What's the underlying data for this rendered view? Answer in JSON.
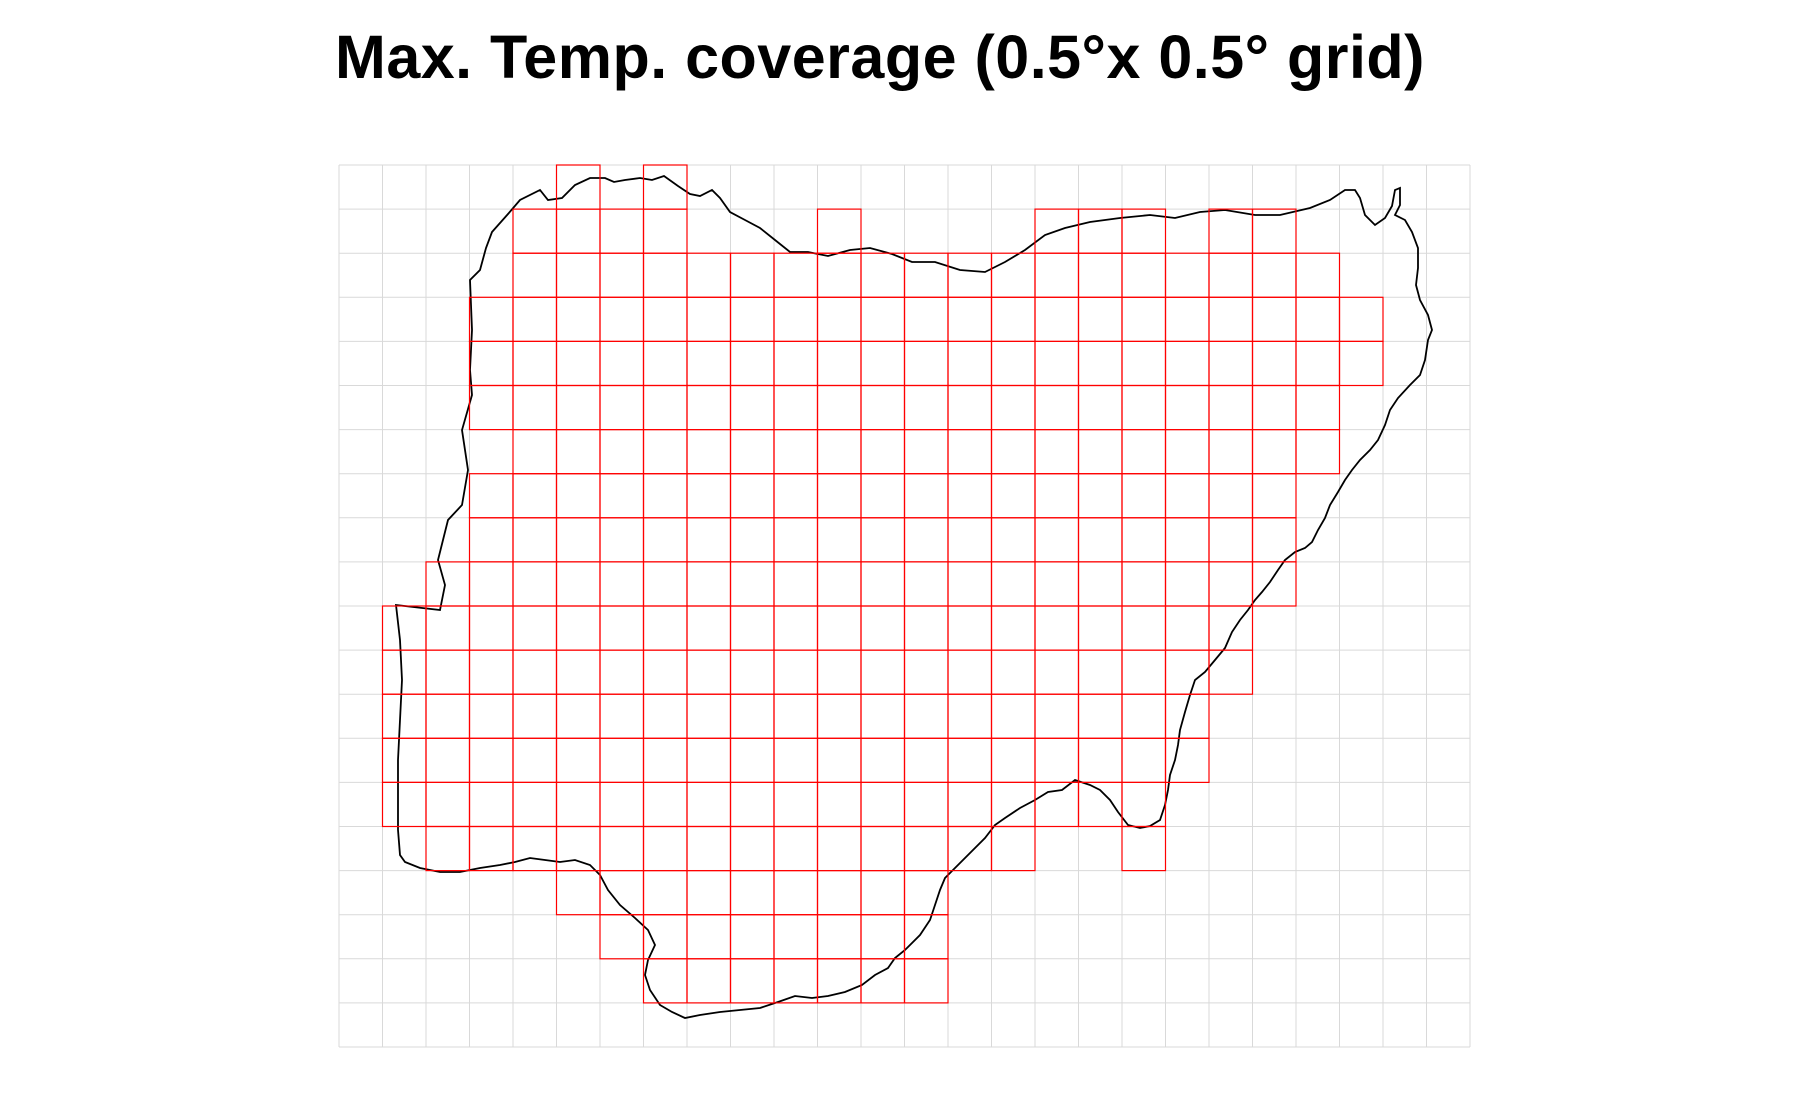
{
  "title": "Max. Temp. coverage (0.5°x 0.5° grid)",
  "colors": {
    "background": "#ffffff",
    "grid_line": "#d9d9d9",
    "covered_cell": "#ff0000",
    "boundary": "#000000"
  },
  "grid": {
    "cell_size_degrees": 0.5,
    "columns": 26,
    "rows": 20,
    "covered_cells": [
      [
        5,
        0
      ],
      [
        7,
        0
      ],
      [
        4,
        1
      ],
      [
        5,
        1
      ],
      [
        6,
        1
      ],
      [
        7,
        1
      ],
      [
        11,
        1
      ],
      [
        16,
        1
      ],
      [
        17,
        1
      ],
      [
        18,
        1
      ],
      [
        20,
        1
      ],
      [
        21,
        1
      ],
      [
        4,
        2
      ],
      [
        5,
        2
      ],
      [
        6,
        2
      ],
      [
        7,
        2
      ],
      [
        8,
        2
      ],
      [
        9,
        2
      ],
      [
        10,
        2
      ],
      [
        11,
        2
      ],
      [
        12,
        2
      ],
      [
        13,
        2
      ],
      [
        14,
        2
      ],
      [
        15,
        2
      ],
      [
        16,
        2
      ],
      [
        17,
        2
      ],
      [
        18,
        2
      ],
      [
        19,
        2
      ],
      [
        20,
        2
      ],
      [
        21,
        2
      ],
      [
        22,
        2
      ],
      [
        3,
        3
      ],
      [
        4,
        3
      ],
      [
        5,
        3
      ],
      [
        6,
        3
      ],
      [
        7,
        3
      ],
      [
        8,
        3
      ],
      [
        9,
        3
      ],
      [
        10,
        3
      ],
      [
        11,
        3
      ],
      [
        12,
        3
      ],
      [
        13,
        3
      ],
      [
        14,
        3
      ],
      [
        15,
        3
      ],
      [
        16,
        3
      ],
      [
        17,
        3
      ],
      [
        18,
        3
      ],
      [
        19,
        3
      ],
      [
        20,
        3
      ],
      [
        21,
        3
      ],
      [
        22,
        3
      ],
      [
        23,
        3
      ],
      [
        3,
        4
      ],
      [
        4,
        4
      ],
      [
        5,
        4
      ],
      [
        6,
        4
      ],
      [
        7,
        4
      ],
      [
        8,
        4
      ],
      [
        9,
        4
      ],
      [
        10,
        4
      ],
      [
        11,
        4
      ],
      [
        12,
        4
      ],
      [
        13,
        4
      ],
      [
        14,
        4
      ],
      [
        15,
        4
      ],
      [
        16,
        4
      ],
      [
        17,
        4
      ],
      [
        18,
        4
      ],
      [
        19,
        4
      ],
      [
        20,
        4
      ],
      [
        21,
        4
      ],
      [
        22,
        4
      ],
      [
        23,
        4
      ],
      [
        3,
        5
      ],
      [
        4,
        5
      ],
      [
        5,
        5
      ],
      [
        6,
        5
      ],
      [
        7,
        5
      ],
      [
        8,
        5
      ],
      [
        9,
        5
      ],
      [
        10,
        5
      ],
      [
        11,
        5
      ],
      [
        12,
        5
      ],
      [
        13,
        5
      ],
      [
        14,
        5
      ],
      [
        15,
        5
      ],
      [
        16,
        5
      ],
      [
        17,
        5
      ],
      [
        18,
        5
      ],
      [
        19,
        5
      ],
      [
        20,
        5
      ],
      [
        21,
        5
      ],
      [
        22,
        5
      ],
      [
        4,
        6
      ],
      [
        5,
        6
      ],
      [
        6,
        6
      ],
      [
        7,
        6
      ],
      [
        8,
        6
      ],
      [
        9,
        6
      ],
      [
        10,
        6
      ],
      [
        11,
        6
      ],
      [
        12,
        6
      ],
      [
        13,
        6
      ],
      [
        14,
        6
      ],
      [
        15,
        6
      ],
      [
        16,
        6
      ],
      [
        17,
        6
      ],
      [
        18,
        6
      ],
      [
        19,
        6
      ],
      [
        20,
        6
      ],
      [
        21,
        6
      ],
      [
        22,
        6
      ],
      [
        3,
        7
      ],
      [
        4,
        7
      ],
      [
        5,
        7
      ],
      [
        6,
        7
      ],
      [
        7,
        7
      ],
      [
        8,
        7
      ],
      [
        9,
        7
      ],
      [
        10,
        7
      ],
      [
        11,
        7
      ],
      [
        12,
        7
      ],
      [
        13,
        7
      ],
      [
        14,
        7
      ],
      [
        15,
        7
      ],
      [
        16,
        7
      ],
      [
        17,
        7
      ],
      [
        18,
        7
      ],
      [
        19,
        7
      ],
      [
        20,
        7
      ],
      [
        21,
        7
      ],
      [
        3,
        8
      ],
      [
        4,
        8
      ],
      [
        5,
        8
      ],
      [
        6,
        8
      ],
      [
        7,
        8
      ],
      [
        8,
        8
      ],
      [
        9,
        8
      ],
      [
        10,
        8
      ],
      [
        11,
        8
      ],
      [
        12,
        8
      ],
      [
        13,
        8
      ],
      [
        14,
        8
      ],
      [
        15,
        8
      ],
      [
        16,
        8
      ],
      [
        17,
        8
      ],
      [
        18,
        8
      ],
      [
        19,
        8
      ],
      [
        20,
        8
      ],
      [
        21,
        8
      ],
      [
        2,
        9
      ],
      [
        3,
        9
      ],
      [
        4,
        9
      ],
      [
        5,
        9
      ],
      [
        6,
        9
      ],
      [
        7,
        9
      ],
      [
        8,
        9
      ],
      [
        9,
        9
      ],
      [
        10,
        9
      ],
      [
        11,
        9
      ],
      [
        12,
        9
      ],
      [
        13,
        9
      ],
      [
        14,
        9
      ],
      [
        15,
        9
      ],
      [
        16,
        9
      ],
      [
        17,
        9
      ],
      [
        18,
        9
      ],
      [
        19,
        9
      ],
      [
        20,
        9
      ],
      [
        21,
        9
      ],
      [
        1,
        10
      ],
      [
        2,
        10
      ],
      [
        3,
        10
      ],
      [
        4,
        10
      ],
      [
        5,
        10
      ],
      [
        6,
        10
      ],
      [
        7,
        10
      ],
      [
        8,
        10
      ],
      [
        9,
        10
      ],
      [
        10,
        10
      ],
      [
        11,
        10
      ],
      [
        12,
        10
      ],
      [
        13,
        10
      ],
      [
        14,
        10
      ],
      [
        15,
        10
      ],
      [
        16,
        10
      ],
      [
        17,
        10
      ],
      [
        18,
        10
      ],
      [
        19,
        10
      ],
      [
        20,
        10
      ],
      [
        1,
        11
      ],
      [
        2,
        11
      ],
      [
        3,
        11
      ],
      [
        4,
        11
      ],
      [
        5,
        11
      ],
      [
        6,
        11
      ],
      [
        7,
        11
      ],
      [
        8,
        11
      ],
      [
        9,
        11
      ],
      [
        10,
        11
      ],
      [
        11,
        11
      ],
      [
        12,
        11
      ],
      [
        13,
        11
      ],
      [
        14,
        11
      ],
      [
        15,
        11
      ],
      [
        16,
        11
      ],
      [
        17,
        11
      ],
      [
        18,
        11
      ],
      [
        19,
        11
      ],
      [
        20,
        11
      ],
      [
        1,
        12
      ],
      [
        2,
        12
      ],
      [
        3,
        12
      ],
      [
        4,
        12
      ],
      [
        5,
        12
      ],
      [
        6,
        12
      ],
      [
        7,
        12
      ],
      [
        8,
        12
      ],
      [
        9,
        12
      ],
      [
        10,
        12
      ],
      [
        11,
        12
      ],
      [
        12,
        12
      ],
      [
        13,
        12
      ],
      [
        14,
        12
      ],
      [
        15,
        12
      ],
      [
        16,
        12
      ],
      [
        17,
        12
      ],
      [
        18,
        12
      ],
      [
        19,
        12
      ],
      [
        1,
        13
      ],
      [
        2,
        13
      ],
      [
        3,
        13
      ],
      [
        4,
        13
      ],
      [
        5,
        13
      ],
      [
        6,
        13
      ],
      [
        7,
        13
      ],
      [
        8,
        13
      ],
      [
        9,
        13
      ],
      [
        10,
        13
      ],
      [
        11,
        13
      ],
      [
        12,
        13
      ],
      [
        13,
        13
      ],
      [
        14,
        13
      ],
      [
        15,
        13
      ],
      [
        16,
        13
      ],
      [
        17,
        13
      ],
      [
        18,
        13
      ],
      [
        19,
        13
      ],
      [
        1,
        14
      ],
      [
        2,
        14
      ],
      [
        3,
        14
      ],
      [
        4,
        14
      ],
      [
        5,
        14
      ],
      [
        6,
        14
      ],
      [
        7,
        14
      ],
      [
        8,
        14
      ],
      [
        9,
        14
      ],
      [
        10,
        14
      ],
      [
        11,
        14
      ],
      [
        12,
        14
      ],
      [
        13,
        14
      ],
      [
        14,
        14
      ],
      [
        15,
        14
      ],
      [
        16,
        14
      ],
      [
        17,
        14
      ],
      [
        18,
        14
      ],
      [
        2,
        15
      ],
      [
        3,
        15
      ],
      [
        4,
        15
      ],
      [
        5,
        15
      ],
      [
        6,
        15
      ],
      [
        7,
        15
      ],
      [
        8,
        15
      ],
      [
        9,
        15
      ],
      [
        10,
        15
      ],
      [
        11,
        15
      ],
      [
        12,
        15
      ],
      [
        13,
        15
      ],
      [
        14,
        15
      ],
      [
        15,
        15
      ],
      [
        18,
        15
      ],
      [
        5,
        16
      ],
      [
        6,
        16
      ],
      [
        7,
        16
      ],
      [
        8,
        16
      ],
      [
        9,
        16
      ],
      [
        10,
        16
      ],
      [
        11,
        16
      ],
      [
        12,
        16
      ],
      [
        13,
        16
      ],
      [
        6,
        17
      ],
      [
        7,
        17
      ],
      [
        8,
        17
      ],
      [
        9,
        17
      ],
      [
        10,
        17
      ],
      [
        11,
        17
      ],
      [
        12,
        17
      ],
      [
        13,
        17
      ],
      [
        7,
        18
      ],
      [
        8,
        18
      ],
      [
        9,
        18
      ],
      [
        10,
        18
      ],
      [
        11,
        18
      ],
      [
        12,
        18
      ],
      [
        13,
        18
      ]
    ]
  }
}
